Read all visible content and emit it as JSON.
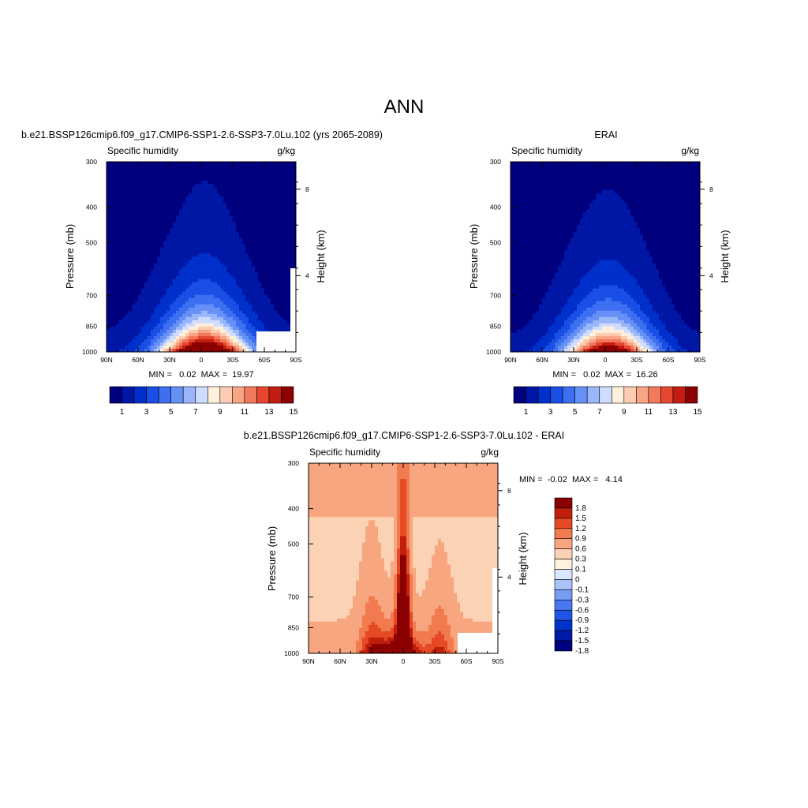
{
  "figure_title": "ANN",
  "colors": {
    "abs_levels": [
      "#00007f",
      "#0017a6",
      "#0030cc",
      "#1a4fe6",
      "#3d6ff0",
      "#6690f5",
      "#9ab6fa",
      "#cddcff",
      "#fff0dc",
      "#fccdb2",
      "#f8a585",
      "#f3795d",
      "#e5472f",
      "#c31c10",
      "#8b0000"
    ],
    "diff_levels": [
      "#00007f",
      "#0019a6",
      "#0033cc",
      "#1f55e6",
      "#4a77f0",
      "#779cf5",
      "#a9c3fa",
      "#d9e6ff",
      "#fff1dc",
      "#fcd2b5",
      "#f7a67f",
      "#f27a4f",
      "#e54a25",
      "#c01f0c",
      "#8b0000"
    ]
  },
  "chart_data": [
    {
      "type": "heatmap",
      "panel_title": "b.e21.BSSP126cmip6.f09_g17.CMIP6-SSP1-2.6-SSP3-7.0Lu.102 (yrs 2065-2089)",
      "left_label": "Specific humidity",
      "right_label": "g/kg",
      "ylabel": "Pressure (mb)",
      "y2label": "Height (km)",
      "x_ticks": [
        "90N",
        "60N",
        "30N",
        "0",
        "30S",
        "60S",
        "90S"
      ],
      "y_ticks": [
        "300",
        "400",
        "500",
        "700",
        "850",
        "1000"
      ],
      "y2_ticks": [
        "8",
        "4"
      ],
      "x": [
        90,
        60,
        30,
        0,
        -30,
        -60,
        -90
      ],
      "ylim": [
        1000,
        300
      ],
      "y_scale": "log",
      "stats": "MIN =   0.02  MAX =  19.97",
      "colorbar_labels": [
        "1",
        "3",
        "5",
        "7",
        "9",
        "11",
        "13",
        "15"
      ],
      "colorbar_levels": [
        1,
        2,
        3,
        4,
        5,
        6,
        7,
        8,
        9,
        10,
        11,
        12,
        13,
        14,
        15
      ]
    },
    {
      "type": "heatmap",
      "panel_title": "ERAI",
      "left_label": "Specific humidity",
      "right_label": "g/kg",
      "ylabel": "Pressure (mb)",
      "y2label": "Height (km)",
      "x_ticks": [
        "90N",
        "60N",
        "30N",
        "0",
        "30S",
        "60S",
        "90S"
      ],
      "y_ticks": [
        "300",
        "400",
        "500",
        "700",
        "850",
        "1000"
      ],
      "y2_ticks": [
        "8",
        "4"
      ],
      "x": [
        90,
        60,
        30,
        0,
        -30,
        -60,
        -90
      ],
      "ylim": [
        1000,
        300
      ],
      "y_scale": "log",
      "stats": "MIN =   0.02  MAX =  16.26",
      "colorbar_labels": [
        "1",
        "3",
        "5",
        "7",
        "9",
        "11",
        "13",
        "15"
      ],
      "colorbar_levels": [
        1,
        2,
        3,
        4,
        5,
        6,
        7,
        8,
        9,
        10,
        11,
        12,
        13,
        14,
        15
      ]
    },
    {
      "type": "heatmap",
      "panel_title": "b.e21.BSSP126cmip6.f09_g17.CMIP6-SSP1-2.6-SSP3-7.0Lu.102 - ERAI",
      "left_label": "Specific humidity",
      "right_label": "g/kg",
      "ylabel": "Pressure (mb)",
      "y2label": "Height (km)",
      "x_ticks": [
        "90N",
        "60N",
        "30N",
        "0",
        "30S",
        "60S",
        "90S"
      ],
      "y_ticks": [
        "300",
        "400",
        "500",
        "700",
        "850",
        "1000"
      ],
      "y2_ticks": [
        "8",
        "4"
      ],
      "x": [
        90,
        60,
        30,
        0,
        -30,
        -60,
        -90
      ],
      "ylim": [
        1000,
        300
      ],
      "y_scale": "log",
      "stats": "MIN =  -0.02  MAX =   4.14",
      "colorbar_labels": [
        "1.8",
        "1.5",
        "1.2",
        "0.9",
        "0.6",
        "0.3",
        "0.1",
        "0",
        "-0.1",
        "-0.3",
        "-0.6",
        "-0.9",
        "-1.2",
        "-1.5",
        "-1.8"
      ],
      "colorbar_levels": [
        1.8,
        1.5,
        1.2,
        0.9,
        0.6,
        0.3,
        0.1,
        0,
        -0.1,
        -0.3,
        -0.6,
        -0.9,
        -1.2,
        -1.5,
        -1.8
      ]
    }
  ]
}
